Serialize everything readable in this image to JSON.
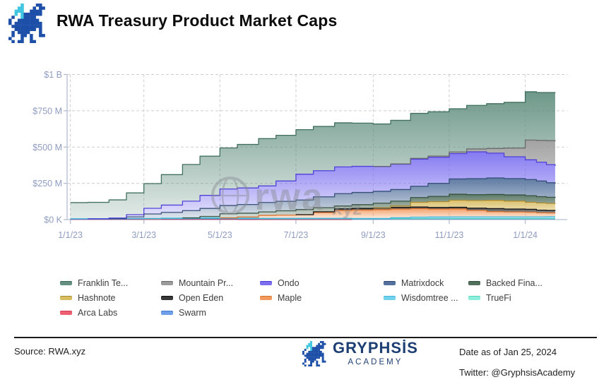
{
  "header": {
    "title": "RWA Treasury Product Market Caps",
    "logo_icon": "pixel-dragon-icon"
  },
  "chart_data": {
    "type": "area",
    "stacked": true,
    "title": "RWA Treasury Product Market Caps",
    "unit": "USD millions",
    "ylim": [
      0,
      1000
    ],
    "grid": "dashed",
    "legend_position": "bottom",
    "axis_color": "#b4bdd1",
    "grid_color": "#cdcdcd",
    "tick_label_color": "#8f9cc0",
    "y_ticks": [
      {
        "value": 0,
        "label": "$0 K"
      },
      {
        "value": 250,
        "label": "$250 M"
      },
      {
        "value": 500,
        "label": "$500 M"
      },
      {
        "value": 750,
        "label": "$750 M"
      },
      {
        "value": 1000,
        "label": "$1 B"
      }
    ],
    "x_ticks": [
      {
        "day": 0,
        "label": "1/1/23"
      },
      {
        "day": 59,
        "label": "3/1/23"
      },
      {
        "day": 120,
        "label": "5/1/23"
      },
      {
        "day": 181,
        "label": "7/1/23"
      },
      {
        "day": 243,
        "label": "9/1/23"
      },
      {
        "day": 304,
        "label": "11/1/23"
      },
      {
        "day": 365,
        "label": "1/1/24"
      }
    ],
    "x_dates": [
      "1/1/23",
      "1/15/23",
      "2/1/23",
      "2/15/23",
      "3/1/23",
      "3/15/23",
      "4/1/23",
      "4/15/23",
      "5/1/23",
      "5/15/23",
      "6/1/23",
      "6/15/23",
      "7/1/23",
      "7/15/23",
      "8/1/23",
      "8/15/23",
      "9/1/23",
      "9/15/23",
      "10/1/23",
      "10/15/23",
      "11/1/23",
      "11/15/23",
      "12/1/23",
      "12/15/23",
      "1/1/24",
      "1/10/24",
      "1/18/24",
      "1/25/24"
    ],
    "x_days": [
      0,
      14,
      31,
      45,
      59,
      73,
      90,
      104,
      120,
      134,
      151,
      165,
      181,
      195,
      212,
      226,
      243,
      257,
      273,
      287,
      304,
      318,
      334,
      348,
      365,
      374,
      382,
      389
    ],
    "series": [
      {
        "name": "Arca Labs",
        "color": "#ef5f72",
        "edge": "#d23b55",
        "values": [
          2,
          2,
          2,
          2,
          2,
          2,
          2,
          2,
          2,
          1,
          1,
          1,
          1,
          1,
          1,
          0,
          0,
          0,
          0,
          0,
          0,
          0,
          0,
          0,
          0,
          0,
          0,
          0
        ]
      },
      {
        "name": "Swarm",
        "color": "#6f9fe8",
        "edge": "#4478cc",
        "values": [
          2,
          2,
          2,
          3,
          4,
          4,
          4,
          4,
          4,
          4,
          4,
          4,
          4,
          4,
          4,
          4,
          4,
          5,
          5,
          5,
          5,
          5,
          5,
          5,
          5,
          5,
          5,
          5
        ]
      },
      {
        "name": "TrueFi",
        "color": "#8deedd",
        "edge": "#52d4bd",
        "values": [
          0,
          0,
          0,
          0,
          0,
          2,
          4,
          4,
          4,
          3,
          2,
          2,
          2,
          2,
          2,
          2,
          2,
          2,
          2,
          2,
          2,
          2,
          2,
          2,
          2,
          2,
          2,
          2
        ]
      },
      {
        "name": "Wisdomtree ...",
        "color": "#72d2ec",
        "edge": "#3fb6dc",
        "values": [
          2,
          2,
          2,
          2,
          2,
          2,
          2,
          2,
          2,
          2,
          2,
          2,
          2,
          2,
          2,
          2,
          2,
          6,
          10,
          11,
          12,
          12,
          12,
          12,
          12,
          12,
          13,
          13
        ]
      },
      {
        "name": "Maple",
        "color": "#f29a5e",
        "edge": "#d86f28",
        "values": [
          0,
          0,
          0,
          0,
          0,
          0,
          0,
          0,
          0,
          8,
          20,
          22,
          25,
          40,
          55,
          58,
          61,
          60,
          59,
          55,
          55,
          45,
          36,
          34,
          32,
          28,
          26,
          24
        ]
      },
      {
        "name": "Open Eden",
        "color": "#383838",
        "edge": "#0d0d0d",
        "values": [
          0,
          0,
          0,
          0,
          0,
          0,
          0,
          0,
          0,
          0,
          0,
          0,
          0,
          5,
          10,
          11,
          12,
          12,
          11,
          11,
          11,
          15,
          21,
          20,
          20,
          18,
          17,
          17
        ]
      },
      {
        "name": "Hashnote",
        "color": "#d9bd62",
        "edge": "#a8882f",
        "values": [
          0,
          0,
          0,
          0,
          0,
          0,
          0,
          0,
          0,
          0,
          0,
          0,
          0,
          0,
          0,
          0,
          0,
          10,
          33,
          40,
          49,
          53,
          57,
          55,
          49,
          50,
          49,
          48
        ]
      },
      {
        "name": "Backed Fina...",
        "color": "#51705c",
        "edge": "#304f3c",
        "values": [
          0,
          0,
          0,
          0,
          0,
          0,
          0,
          10,
          28,
          26,
          24,
          30,
          35,
          28,
          20,
          26,
          32,
          32,
          32,
          36,
          41,
          40,
          40,
          42,
          45,
          43,
          42,
          41
        ]
      },
      {
        "name": "Matrixdock",
        "color": "#53719c",
        "edge": "#2f4a74",
        "values": [
          0,
          0,
          0,
          12,
          31,
          40,
          50,
          55,
          57,
          60,
          65,
          65,
          66,
          75,
          85,
          84,
          82,
          80,
          78,
          90,
          105,
          110,
          114,
          113,
          111,
          108,
          100,
          97
        ]
      },
      {
        "name": "Ondo",
        "color": "#7b6ff0",
        "edge": "#4a3bd8",
        "values": [
          0,
          0,
          5,
          15,
          39,
          50,
          65,
          90,
          114,
          114,
          114,
          140,
          178,
          180,
          184,
          180,
          171,
          175,
          187,
          180,
          175,
          185,
          171,
          150,
          136,
          130,
          125,
          123
        ]
      },
      {
        "name": "Mountain Pr...",
        "color": "#9b9b9b",
        "edge": "#666666",
        "values": [
          0,
          0,
          0,
          0,
          0,
          0,
          0,
          0,
          0,
          0,
          0,
          0,
          0,
          0,
          0,
          0,
          0,
          2,
          5,
          8,
          11,
          20,
          32,
          60,
          136,
          150,
          165,
          170
        ]
      },
      {
        "name": "Franklin Te...",
        "color": "#639080",
        "edge": "#3a6a58",
        "values": [
          111,
          113,
          125,
          150,
          170,
          210,
          253,
          270,
          283,
          300,
          326,
          315,
          307,
          305,
          304,
          298,
          293,
          300,
          310,
          305,
          298,
          300,
          309,
          315,
          333,
          330,
          332,
          334
        ]
      }
    ],
    "legend_rows": [
      [
        11,
        10,
        9,
        8,
        7
      ],
      [
        6,
        5,
        4,
        3,
        2
      ],
      [
        0,
        1
      ]
    ],
    "watermark": {
      "icon": "globe-icon",
      "text_main": "rwa",
      "text_sub": "xyz",
      "color": "#85888f"
    }
  },
  "footer": {
    "source_label": "Source: RWA.xyz",
    "brand_name": "GRYPHSİS",
    "brand_sub": "ACADEMY",
    "brand_icon": "pixel-dragon-icon",
    "date_text": "Date as of Jan 25, 2024",
    "twitter_text": "Twitter: @GryphsisAcademy"
  },
  "brand_colors": {
    "navy": "#1e3f73",
    "dragon_blue": "#1d4fa8",
    "dragon_cyan": "#3fc6e0"
  }
}
